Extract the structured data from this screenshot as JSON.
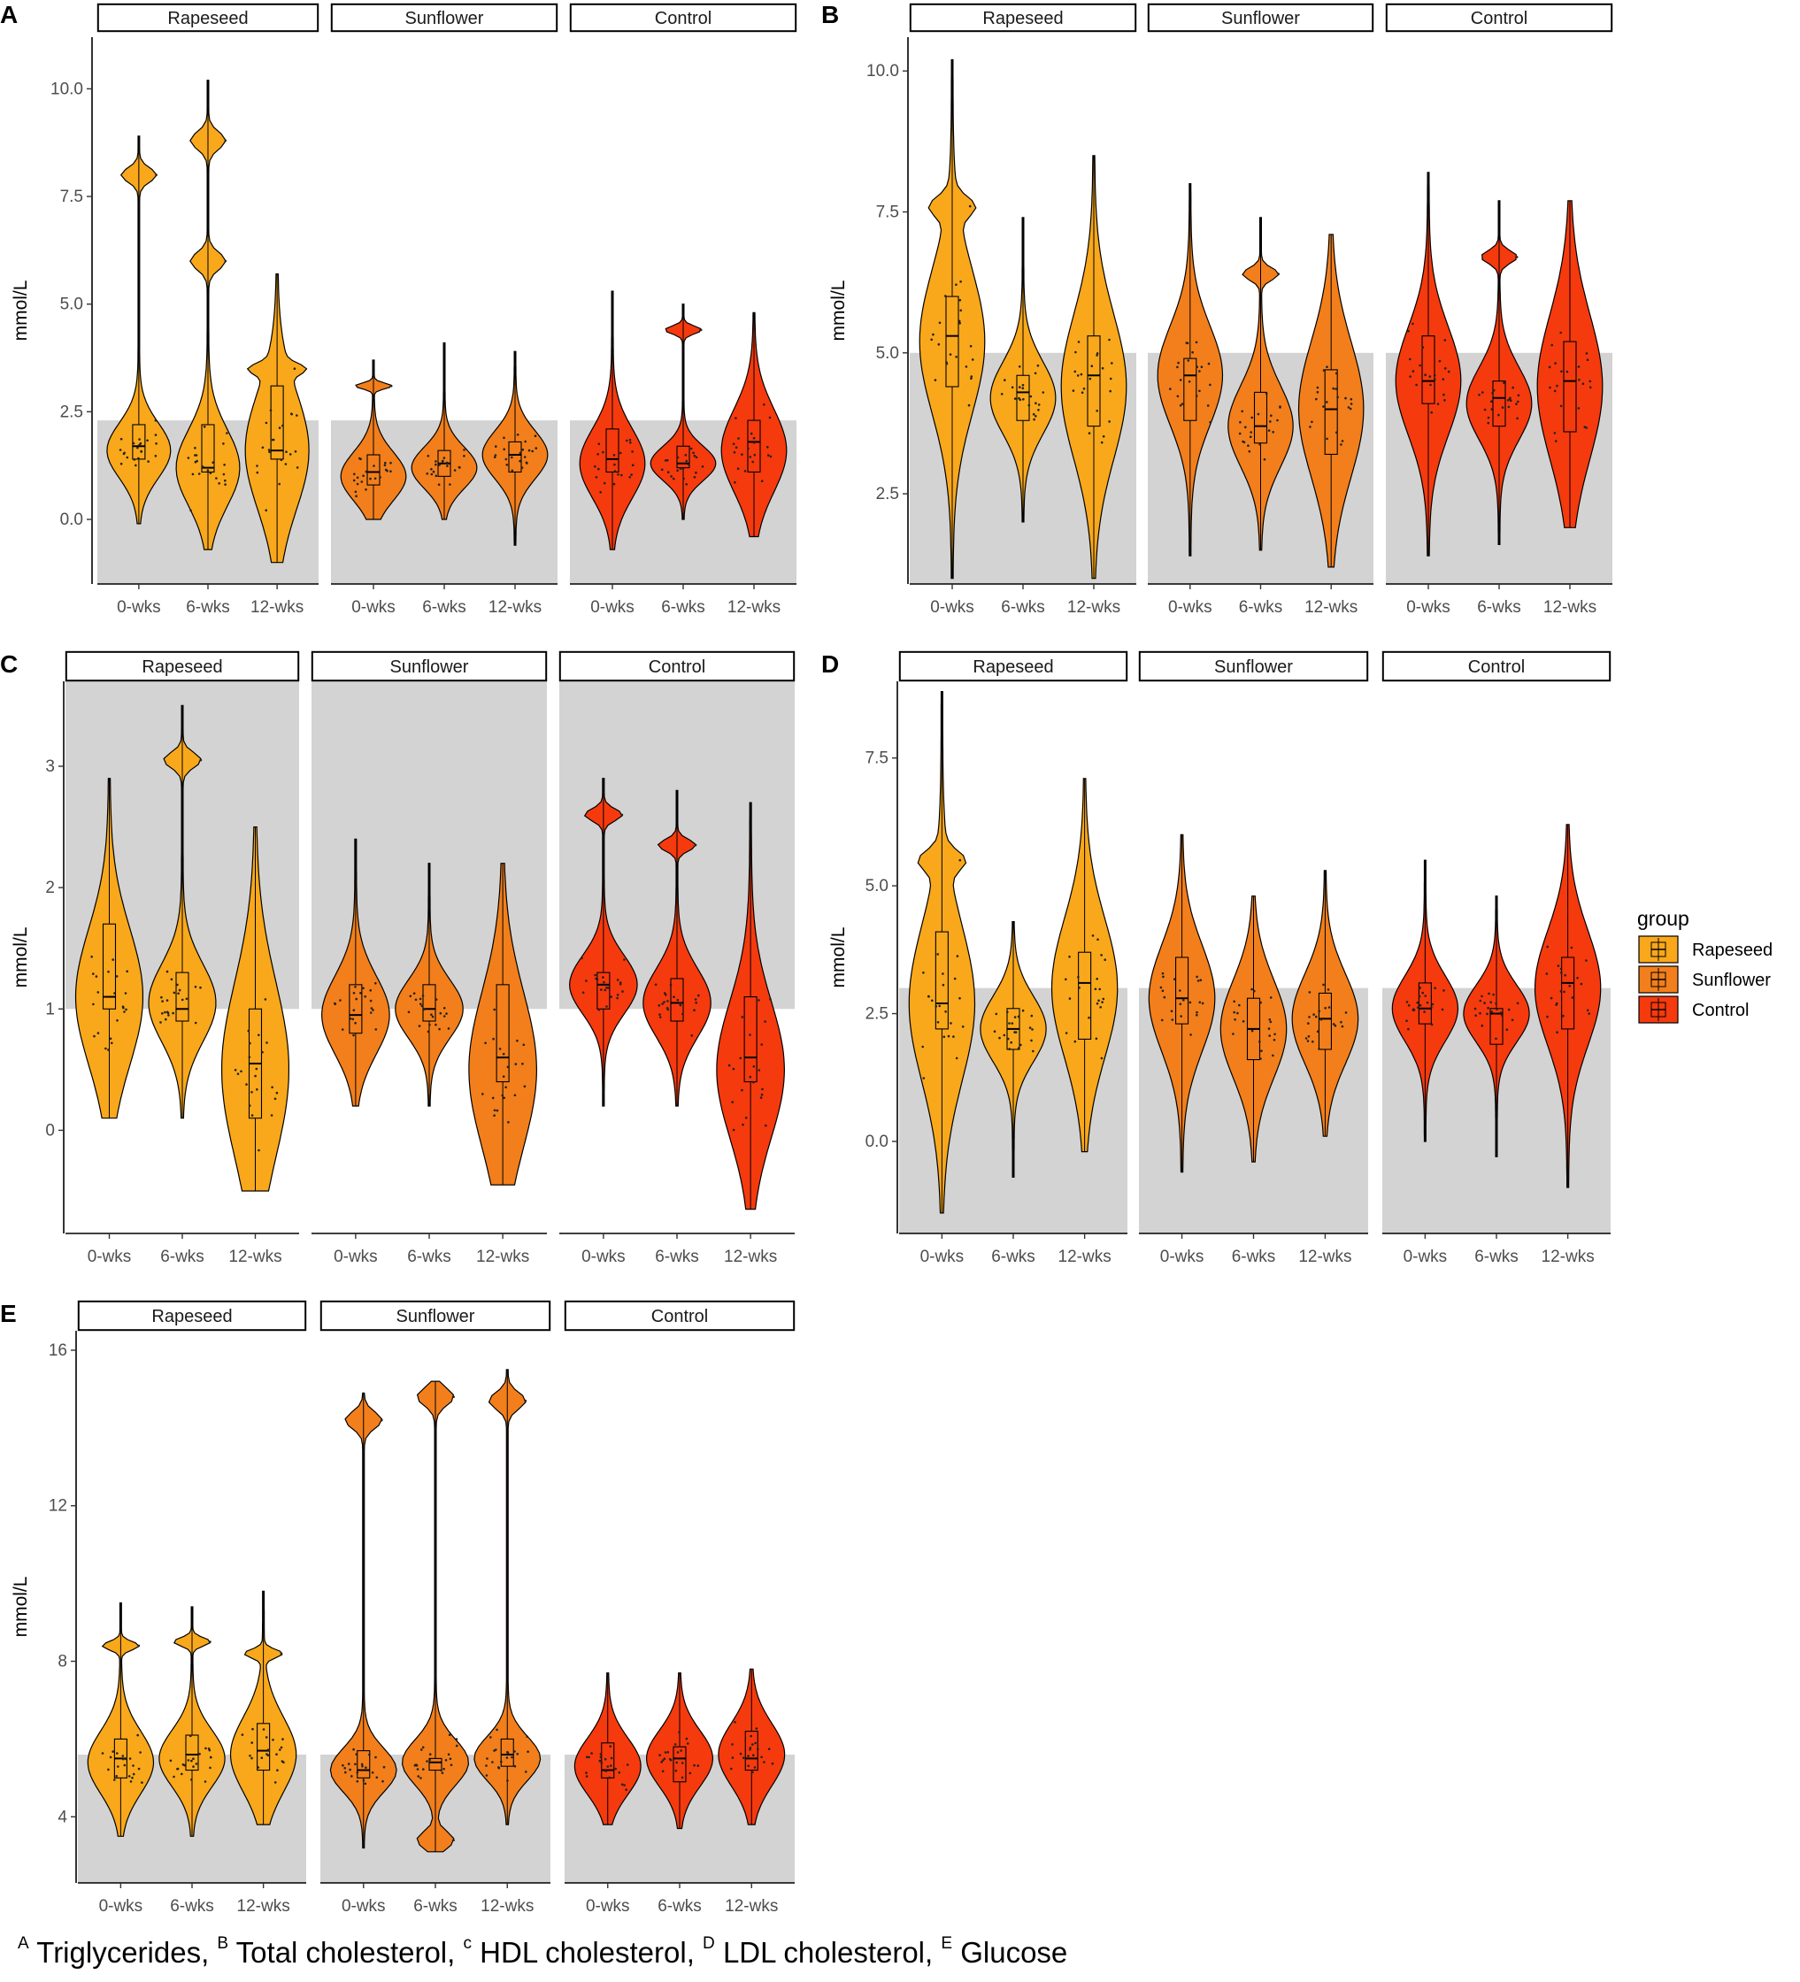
{
  "caption": {
    "parts": [
      {
        "sup": "A",
        "text": " Triglycerides, "
      },
      {
        "sup": "B",
        "text": " Total cholesterol, "
      },
      {
        "sup": "c",
        "text": " HDL cholesterol, "
      },
      {
        "sup": "D",
        "text": " LDL cholesterol, "
      },
      {
        "sup": "E",
        "text": " Glucose"
      }
    ]
  },
  "legend": {
    "title": "group",
    "items": [
      {
        "label": "Rapeseed",
        "color": "#F9A81B"
      },
      {
        "label": "Sunflower",
        "color": "#F27F1B"
      },
      {
        "label": "Control",
        "color": "#F53A0E"
      }
    ]
  },
  "colors": {
    "reference_band": "#D3D3D3",
    "outline": "#000000"
  },
  "chart_data": [
    {
      "panel": "A",
      "type": "violin",
      "ylabel": "mmol/L",
      "yticks": [
        0.0,
        2.5,
        5.0,
        7.5,
        10.0
      ],
      "tick_labels": [
        "0.0",
        "2.5",
        "5.0",
        "7.5",
        "10.0"
      ],
      "ylim": [
        -1.5,
        11.2
      ],
      "reference_band": [
        -1.5,
        2.3
      ],
      "facets": [
        "Rapeseed",
        "Sunflower",
        "Control"
      ],
      "categories": [
        "0-wks",
        "6-wks",
        "12-wks"
      ],
      "series": [
        {
          "name": "Rapeseed",
          "groups": [
            {
              "q1": 1.4,
              "median": 1.7,
              "q3": 2.2,
              "min": -0.1,
              "max": 8.9,
              "peak": 1.6,
              "modes": [
                8.0
              ]
            },
            {
              "q1": 1.1,
              "median": 1.2,
              "q3": 2.2,
              "min": -0.7,
              "max": 10.2,
              "peak": 1.2,
              "modes": [
                6.0,
                8.8
              ]
            },
            {
              "q1": 1.4,
              "median": 1.6,
              "q3": 3.1,
              "min": -1.0,
              "max": 5.7,
              "peak": 1.6,
              "modes": [
                3.5
              ]
            }
          ]
        },
        {
          "name": "Sunflower",
          "groups": [
            {
              "q1": 0.8,
              "median": 1.1,
              "q3": 1.5,
              "min": 0.0,
              "max": 3.7,
              "peak": 1.0,
              "modes": [
                3.1
              ]
            },
            {
              "q1": 1.0,
              "median": 1.3,
              "q3": 1.6,
              "min": 0.0,
              "max": 4.1,
              "peak": 1.2,
              "modes": []
            },
            {
              "q1": 1.1,
              "median": 1.5,
              "q3": 1.8,
              "min": -0.6,
              "max": 3.9,
              "peak": 1.5,
              "modes": []
            }
          ]
        },
        {
          "name": "Control",
          "groups": [
            {
              "q1": 1.1,
              "median": 1.4,
              "q3": 2.1,
              "min": -0.7,
              "max": 5.3,
              "peak": 1.3,
              "modes": []
            },
            {
              "q1": 1.2,
              "median": 1.3,
              "q3": 1.7,
              "min": 0.0,
              "max": 5.0,
              "peak": 1.3,
              "modes": [
                4.4
              ]
            },
            {
              "q1": 1.1,
              "median": 1.8,
              "q3": 2.3,
              "min": -0.4,
              "max": 4.8,
              "peak": 1.6,
              "modes": []
            }
          ]
        }
      ]
    },
    {
      "panel": "B",
      "type": "violin",
      "ylabel": "mmol/L",
      "yticks": [
        2.5,
        5.0,
        7.5,
        10.0
      ],
      "tick_labels": [
        "2.5",
        "5.0",
        "7.5",
        "10.0"
      ],
      "ylim": [
        0.9,
        10.6
      ],
      "reference_band": [
        0.9,
        5.0
      ],
      "facets": [
        "Rapeseed",
        "Sunflower",
        "Control"
      ],
      "categories": [
        "0-wks",
        "6-wks",
        "12-wks"
      ],
      "series": [
        {
          "name": "Rapeseed",
          "groups": [
            {
              "q1": 4.4,
              "median": 5.3,
              "q3": 6.0,
              "min": 1.0,
              "max": 10.2,
              "peak": 5.2,
              "modes": [
                7.6
              ]
            },
            {
              "q1": 3.8,
              "median": 4.3,
              "q3": 4.6,
              "min": 2.0,
              "max": 7.4,
              "peak": 4.2,
              "modes": []
            },
            {
              "q1": 3.7,
              "median": 4.6,
              "q3": 5.3,
              "min": 1.0,
              "max": 8.5,
              "peak": 4.4,
              "modes": []
            }
          ]
        },
        {
          "name": "Sunflower",
          "groups": [
            {
              "q1": 3.8,
              "median": 4.6,
              "q3": 4.9,
              "min": 1.4,
              "max": 8.0,
              "peak": 4.6,
              "modes": []
            },
            {
              "q1": 3.4,
              "median": 3.7,
              "q3": 4.3,
              "min": 1.5,
              "max": 7.4,
              "peak": 3.7,
              "modes": [
                6.4
              ]
            },
            {
              "q1": 3.2,
              "median": 4.0,
              "q3": 4.7,
              "min": 1.2,
              "max": 7.1,
              "peak": 4.0,
              "modes": []
            }
          ]
        },
        {
          "name": "Control",
          "groups": [
            {
              "q1": 4.1,
              "median": 4.5,
              "q3": 5.3,
              "min": 1.4,
              "max": 8.2,
              "peak": 4.5,
              "modes": []
            },
            {
              "q1": 3.7,
              "median": 4.2,
              "q3": 4.5,
              "min": 1.6,
              "max": 7.7,
              "peak": 4.1,
              "modes": [
                6.7
              ]
            },
            {
              "q1": 3.6,
              "median": 4.5,
              "q3": 5.2,
              "min": 1.9,
              "max": 7.7,
              "peak": 4.4,
              "modes": []
            }
          ]
        }
      ]
    },
    {
      "panel": "C",
      "type": "violin",
      "ylabel": "mmol/L",
      "yticks": [
        0,
        1,
        2,
        3
      ],
      "tick_labels": [
        "0",
        "1",
        "2",
        "3"
      ],
      "ylim": [
        -0.85,
        3.7
      ],
      "reference_band": [
        1.0,
        3.7
      ],
      "facets": [
        "Rapeseed",
        "Sunflower",
        "Control"
      ],
      "categories": [
        "0-wks",
        "6-wks",
        "12-wks"
      ],
      "series": [
        {
          "name": "Rapeseed",
          "groups": [
            {
              "q1": 1.0,
              "median": 1.1,
              "q3": 1.7,
              "min": 0.1,
              "max": 2.9,
              "peak": 1.1,
              "modes": []
            },
            {
              "q1": 0.9,
              "median": 1.0,
              "q3": 1.3,
              "min": 0.1,
              "max": 3.5,
              "peak": 1.05,
              "modes": [
                3.05
              ]
            },
            {
              "q1": 0.1,
              "median": 0.55,
              "q3": 1.0,
              "min": -0.5,
              "max": 2.5,
              "peak": 0.5,
              "modes": []
            }
          ]
        },
        {
          "name": "Sunflower",
          "groups": [
            {
              "q1": 0.8,
              "median": 0.95,
              "q3": 1.2,
              "min": 0.2,
              "max": 2.4,
              "peak": 0.95,
              "modes": []
            },
            {
              "q1": 0.9,
              "median": 1.0,
              "q3": 1.2,
              "min": 0.2,
              "max": 2.2,
              "peak": 1.0,
              "modes": []
            },
            {
              "q1": 0.4,
              "median": 0.6,
              "q3": 1.2,
              "min": -0.45,
              "max": 2.2,
              "peak": 0.5,
              "modes": []
            }
          ]
        },
        {
          "name": "Control",
          "groups": [
            {
              "q1": 1.0,
              "median": 1.2,
              "q3": 1.3,
              "min": 0.2,
              "max": 2.9,
              "peak": 1.2,
              "modes": [
                2.6
              ]
            },
            {
              "q1": 0.9,
              "median": 1.05,
              "q3": 1.25,
              "min": 0.2,
              "max": 2.8,
              "peak": 1.05,
              "modes": [
                2.35
              ]
            },
            {
              "q1": 0.4,
              "median": 0.6,
              "q3": 1.1,
              "min": -0.65,
              "max": 2.7,
              "peak": 0.5,
              "modes": []
            }
          ]
        }
      ]
    },
    {
      "panel": "D",
      "type": "violin",
      "ylabel": "mmol/L",
      "yticks": [
        0.0,
        2.5,
        5.0,
        7.5
      ],
      "tick_labels": [
        "0.0",
        "2.5",
        "5.0",
        "7.5"
      ],
      "ylim": [
        -1.8,
        9.0
      ],
      "reference_band": [
        -1.8,
        3.0
      ],
      "facets": [
        "Rapeseed",
        "Sunflower",
        "Control"
      ],
      "categories": [
        "0-wks",
        "6-wks",
        "12-wks"
      ],
      "series": [
        {
          "name": "Rapeseed",
          "groups": [
            {
              "q1": 2.2,
              "median": 2.7,
              "q3": 4.1,
              "min": -1.4,
              "max": 8.8,
              "peak": 2.7,
              "modes": [
                5.5
              ]
            },
            {
              "q1": 1.8,
              "median": 2.2,
              "q3": 2.6,
              "min": -0.7,
              "max": 4.3,
              "peak": 2.2,
              "modes": []
            },
            {
              "q1": 2.0,
              "median": 3.1,
              "q3": 3.7,
              "min": -0.2,
              "max": 7.1,
              "peak": 3.0,
              "modes": []
            }
          ]
        },
        {
          "name": "Sunflower",
          "groups": [
            {
              "q1": 2.3,
              "median": 2.8,
              "q3": 3.6,
              "min": -0.6,
              "max": 6.0,
              "peak": 2.8,
              "modes": []
            },
            {
              "q1": 1.6,
              "median": 2.2,
              "q3": 2.8,
              "min": -0.4,
              "max": 4.8,
              "peak": 2.2,
              "modes": []
            },
            {
              "q1": 1.8,
              "median": 2.4,
              "q3": 2.9,
              "min": 0.1,
              "max": 5.3,
              "peak": 2.4,
              "modes": []
            }
          ]
        },
        {
          "name": "Control",
          "groups": [
            {
              "q1": 2.3,
              "median": 2.6,
              "q3": 3.1,
              "min": 0.0,
              "max": 5.5,
              "peak": 2.6,
              "modes": []
            },
            {
              "q1": 1.9,
              "median": 2.5,
              "q3": 2.6,
              "min": -0.3,
              "max": 4.8,
              "peak": 2.5,
              "modes": []
            },
            {
              "q1": 2.2,
              "median": 3.1,
              "q3": 3.6,
              "min": -0.9,
              "max": 6.2,
              "peak": 3.0,
              "modes": []
            }
          ]
        }
      ]
    },
    {
      "panel": "E",
      "type": "violin",
      "ylabel": "mmol/L",
      "yticks": [
        4,
        8,
        12,
        16
      ],
      "tick_labels": [
        "4",
        "8",
        "12",
        "16"
      ],
      "ylim": [
        2.3,
        16.5
      ],
      "reference_band": [
        2.3,
        5.6
      ],
      "facets": [
        "Rapeseed",
        "Sunflower",
        "Control"
      ],
      "categories": [
        "0-wks",
        "6-wks",
        "12-wks"
      ],
      "series": [
        {
          "name": "Rapeseed",
          "groups": [
            {
              "q1": 5.0,
              "median": 5.5,
              "q3": 6.0,
              "min": 3.5,
              "max": 9.5,
              "peak": 5.4,
              "modes": [
                8.4
              ]
            },
            {
              "q1": 5.2,
              "median": 5.6,
              "q3": 6.1,
              "min": 3.5,
              "max": 9.4,
              "peak": 5.5,
              "modes": [
                8.5
              ]
            },
            {
              "q1": 5.2,
              "median": 5.7,
              "q3": 6.4,
              "min": 3.8,
              "max": 9.8,
              "peak": 5.6,
              "modes": [
                8.2
              ]
            }
          ]
        },
        {
          "name": "Sunflower",
          "groups": [
            {
              "q1": 5.0,
              "median": 5.2,
              "q3": 5.7,
              "min": 3.2,
              "max": 14.9,
              "peak": 5.2,
              "modes": [
                14.2
              ]
            },
            {
              "q1": 5.2,
              "median": 5.4,
              "q3": 5.5,
              "min": 3.1,
              "max": 15.2,
              "peak": 5.4,
              "modes": [
                3.4,
                14.8
              ]
            },
            {
              "q1": 5.3,
              "median": 5.6,
              "q3": 6.0,
              "min": 3.8,
              "max": 15.5,
              "peak": 5.5,
              "modes": [
                14.7
              ]
            }
          ]
        },
        {
          "name": "Control",
          "groups": [
            {
              "q1": 5.0,
              "median": 5.2,
              "q3": 5.9,
              "min": 3.8,
              "max": 7.7,
              "peak": 5.3,
              "modes": []
            },
            {
              "q1": 4.9,
              "median": 5.5,
              "q3": 5.8,
              "min": 3.7,
              "max": 7.7,
              "peak": 5.5,
              "modes": []
            },
            {
              "q1": 5.2,
              "median": 5.5,
              "q3": 6.2,
              "min": 3.8,
              "max": 7.8,
              "peak": 5.6,
              "modes": []
            }
          ]
        }
      ]
    }
  ]
}
